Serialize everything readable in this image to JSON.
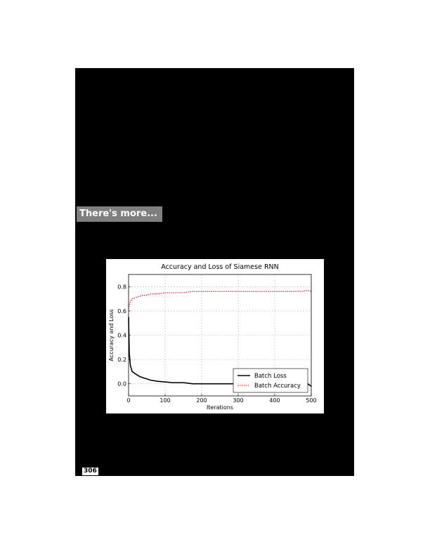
{
  "section_heading": "There's more...",
  "page_number": "306",
  "chart_data": {
    "type": "line",
    "title": "Accuracy and Loss of Siamese RNN",
    "xlabel": "Iterations",
    "ylabel": "Accuracy and Loss",
    "xlim": [
      0,
      500
    ],
    "ylim": [
      -0.1,
      0.9
    ],
    "xticks": [
      0,
      100,
      200,
      300,
      400,
      500
    ],
    "yticks": [
      0.0,
      0.2,
      0.4,
      0.6,
      0.8
    ],
    "grid": true,
    "legend": "bottom-right",
    "series": [
      {
        "name": "Batch Loss",
        "color": "#000000",
        "style": "solid",
        "x": [
          0,
          2,
          5,
          10,
          20,
          30,
          40,
          50,
          60,
          80,
          100,
          120,
          150,
          175,
          200,
          225,
          250,
          275,
          300,
          325,
          350,
          375,
          400,
          425,
          450,
          475,
          490,
          500
        ],
        "values": [
          0.55,
          0.25,
          0.15,
          0.1,
          0.08,
          0.06,
          0.05,
          0.04,
          0.03,
          0.02,
          0.015,
          0.01,
          0.01,
          0.0,
          0.0,
          0.0,
          0.0,
          0.0,
          0.0,
          0.0,
          0.0,
          0.0,
          0.0,
          0.0,
          0.0,
          0.0,
          0.0,
          -0.02
        ]
      },
      {
        "name": "Batch Accuracy",
        "color": "#ff0000",
        "style": "dotted",
        "x": [
          0,
          2,
          5,
          10,
          20,
          30,
          40,
          50,
          60,
          80,
          100,
          120,
          150,
          175,
          200,
          225,
          250,
          275,
          300,
          325,
          350,
          375,
          400,
          425,
          450,
          475,
          490,
          500
        ],
        "values": [
          0.6,
          0.65,
          0.68,
          0.7,
          0.71,
          0.72,
          0.73,
          0.73,
          0.74,
          0.74,
          0.75,
          0.75,
          0.75,
          0.76,
          0.76,
          0.76,
          0.76,
          0.76,
          0.76,
          0.76,
          0.76,
          0.76,
          0.76,
          0.76,
          0.76,
          0.76,
          0.77,
          0.76
        ]
      }
    ]
  }
}
